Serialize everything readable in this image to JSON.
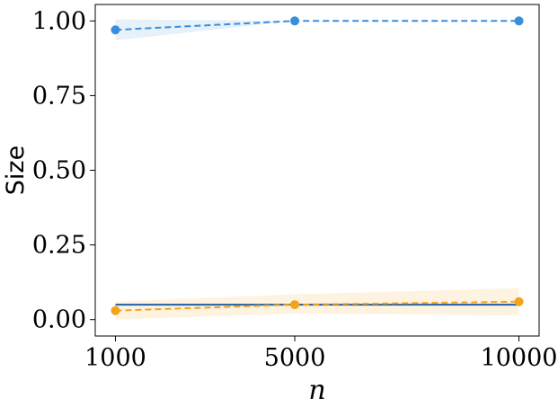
{
  "chart_data": {
    "type": "line",
    "title": "",
    "xlabel": "n",
    "ylabel": "Size",
    "x": [
      1000,
      5000,
      10000
    ],
    "x_tick_labels": [
      "1000",
      "5000",
      "10000"
    ],
    "y_ticks": [
      0.0,
      0.25,
      0.5,
      0.75,
      1.0
    ],
    "y_tick_labels": [
      "0.00",
      "0.25",
      "0.50",
      "0.75",
      "1.00"
    ],
    "xlim": [
      550,
      10450
    ],
    "ylim": [
      -0.055,
      1.055
    ],
    "grid": false,
    "legend": "none",
    "reference_line": {
      "y": 0.05,
      "color": "#1f5fa8"
    },
    "series": [
      {
        "color": "#3a8fdc",
        "values": [
          0.97,
          1.0,
          1.0
        ],
        "lower": [
          0.935,
          1.0,
          1.0
        ],
        "upper": [
          1.005,
          1.0,
          1.0
        ],
        "line_style": "dashed",
        "marker": "circle"
      },
      {
        "color": "#f5a31a",
        "values": [
          0.03,
          0.05,
          0.06
        ],
        "lower": [
          0.0,
          0.02,
          0.015
        ],
        "upper": [
          0.06,
          0.085,
          0.105
        ],
        "line_style": "dashed",
        "marker": "circle"
      }
    ]
  }
}
